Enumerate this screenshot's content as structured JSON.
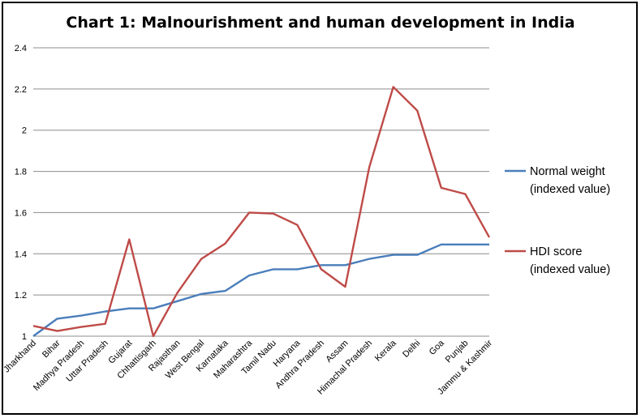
{
  "chart_data": {
    "type": "line",
    "title": "Chart 1: Malnourishment and human development in India",
    "xlabel": "",
    "ylabel": "",
    "ylim": [
      1,
      2.4
    ],
    "yticks": [
      "1",
      "1.2",
      "1.4",
      "1.6",
      "1.8",
      "2",
      "2.2",
      "2.4"
    ],
    "ytick_values": [
      1,
      1.2,
      1.4,
      1.6,
      1.8,
      2,
      2.2,
      2.4
    ],
    "grid": true,
    "legend_position": "right",
    "categories": [
      "Jharkhand",
      "Bihar",
      "Madhya Pradesh",
      "Uttar Pradesh",
      "Gujarat",
      "Chhattisgarh",
      "Rajasthan",
      "West Bengal",
      "Karnataka",
      "Maharashtra",
      "Tamil Nadu",
      "Haryana",
      "Andhra Pradesh",
      "Assam",
      "Himachal Pradesh",
      "Kerala",
      "Delhi",
      "Goa",
      "Punjab",
      "Jammu & Kashmir"
    ],
    "series": [
      {
        "name": "Normal weight (indexed value)",
        "legend_lines": [
          "Normal weight",
          "(indexed value)"
        ],
        "color": "#4a7ebb",
        "values": [
          1.0,
          1.085,
          1.1,
          1.12,
          1.135,
          1.135,
          1.17,
          1.205,
          1.22,
          1.295,
          1.325,
          1.325,
          1.345,
          1.345,
          1.375,
          1.395,
          1.395,
          1.445,
          1.445,
          1.445
        ]
      },
      {
        "name": "HDI score (indexed value)",
        "legend_lines": [
          "HDI score",
          "(indexed value)"
        ],
        "color": "#be4b48",
        "values": [
          1.05,
          1.025,
          1.045,
          1.06,
          1.47,
          1.0,
          1.21,
          1.375,
          1.45,
          1.6,
          1.595,
          1.54,
          1.325,
          1.24,
          1.82,
          2.21,
          2.095,
          1.72,
          1.69,
          1.48
        ]
      }
    ]
  }
}
